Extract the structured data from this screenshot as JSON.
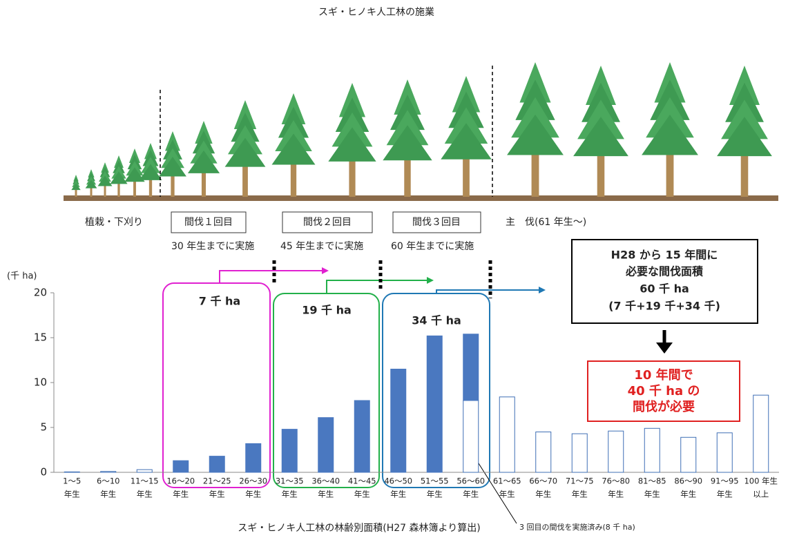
{
  "illustration": {
    "title": "スギ・ヒノキ人工林の施業",
    "stages": [
      "植栽・下刈り",
      "間伐１回目",
      "間伐２回目",
      "間伐３回目",
      "主　伐(61 年生～)"
    ],
    "deadlines": [
      "30 年生までに実施",
      "45 年生までに実施",
      "60 年生までに実施"
    ]
  },
  "chart_data": {
    "type": "bar",
    "title": "スギ・ヒノキ人工林の林齢別面積(H27 森林簿より算出)",
    "ylabel": "(千 ha)",
    "categories": [
      [
        "1～5",
        "年生"
      ],
      [
        "6～10",
        "年生"
      ],
      [
        "11～15",
        "年生"
      ],
      [
        "16～20",
        "年生"
      ],
      [
        "21～25",
        "年生"
      ],
      [
        "26～30",
        "年生"
      ],
      [
        "31～35",
        "年生"
      ],
      [
        "36～40",
        "年生"
      ],
      [
        "41～45",
        "年生"
      ],
      [
        "46～50",
        "年生"
      ],
      [
        "51～55",
        "年生"
      ],
      [
        "56～60",
        "年生"
      ],
      [
        "61～65",
        "年生"
      ],
      [
        "66～70",
        "年生"
      ],
      [
        "71～75",
        "年生"
      ],
      [
        "76～80",
        "年生"
      ],
      [
        "81～85",
        "年生"
      ],
      [
        "86～90",
        "年生"
      ],
      [
        "91～95",
        "年生"
      ],
      [
        "100 年生",
        "以上"
      ]
    ],
    "series": [
      {
        "color": "#ffffff",
        "stroke": "#3f6fb5",
        "values": [
          0.05,
          0.1,
          0.3,
          null,
          null,
          null,
          null,
          null,
          null,
          null,
          null,
          8,
          8.4,
          4.5,
          4.3,
          4.6,
          4.9,
          3.9,
          4.4,
          8.6
        ]
      },
      {
        "color": "#4a78c0",
        "stroke": "#4a78c0",
        "values": [
          null,
          null,
          null,
          1.3,
          1.8,
          3.2,
          4.8,
          6.1,
          8.0,
          11.5,
          15.2,
          7.4,
          null,
          null,
          null,
          null,
          null,
          null,
          null,
          null
        ]
      }
    ],
    "ylim": [
      0,
      20
    ],
    "yticks": [
      0,
      5,
      10,
      15,
      20
    ],
    "grid": false,
    "groups": [
      "7 千 ha",
      "19 千 ha",
      "34 千 ha"
    ],
    "note": "3 回目の間伐を実施済み(8 千 ha)",
    "summary": [
      "H28 から 15 年間に",
      "必要な間伐面積",
      "60 千 ha",
      "(7 千+19 千+34 千)"
    ],
    "conclusion": [
      "10 年間で",
      "40 千 ha の",
      "間伐が必要"
    ]
  }
}
